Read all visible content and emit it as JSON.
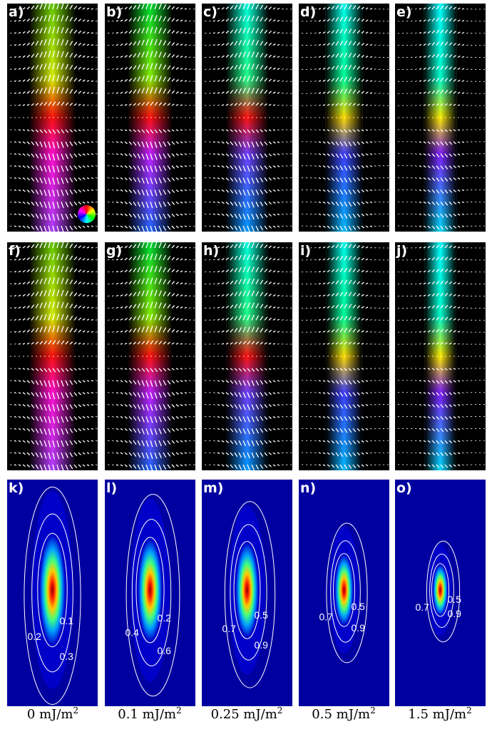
{
  "rows": [
    {
      "panels": [
        {
          "label": "a)",
          "profile": "rainbow",
          "width": 1.0,
          "wheel": true
        },
        {
          "label": "b)",
          "profile": "green-blue",
          "width": 0.9
        },
        {
          "label": "c)",
          "profile": "cyan-tilt",
          "width": 0.8
        },
        {
          "label": "d)",
          "profile": "cyan-narrow",
          "width": 0.55
        },
        {
          "label": "e)",
          "profile": "cyan-sharp",
          "width": 0.35
        }
      ]
    },
    {
      "panels": [
        {
          "label": "f)",
          "profile": "rainbow",
          "width": 1.0
        },
        {
          "label": "g)",
          "profile": "green-blue",
          "width": 0.9
        },
        {
          "label": "h)",
          "profile": "cyan-tilt",
          "width": 0.75
        },
        {
          "label": "i)",
          "profile": "cyan-narrow",
          "width": 0.45
        },
        {
          "label": "j)",
          "profile": "cyan-sharp",
          "width": 0.25
        }
      ]
    }
  ],
  "heatmaps": [
    {
      "label": "k)",
      "contours": [
        "0.1",
        "0.2",
        "0.3"
      ],
      "spread": 1.0
    },
    {
      "label": "l)",
      "contours": [
        "0.2",
        "0.4",
        "0.6"
      ],
      "spread": 0.9
    },
    {
      "label": "m)",
      "contours": [
        "0.5",
        "0.7",
        "0.9"
      ],
      "spread": 0.8
    },
    {
      "label": "n)",
      "contours": [
        "0.5",
        "0.7",
        "0.9"
      ],
      "spread": 0.5
    },
    {
      "label": "o)",
      "contours": [
        "0.5",
        "0.7",
        "0.9"
      ],
      "spread": 0.25
    }
  ],
  "captions": [
    {
      "value": "0",
      "unit": "mJ/m",
      "exp": "2"
    },
    {
      "value": "0.1",
      "unit": "mJ/m",
      "exp": "2"
    },
    {
      "value": "0.25",
      "unit": "mJ/m",
      "exp": "2"
    },
    {
      "value": "0.5",
      "unit": "mJ/m",
      "exp": "2"
    },
    {
      "value": "1.5",
      "unit": "mJ/m",
      "exp": "2"
    }
  ]
}
